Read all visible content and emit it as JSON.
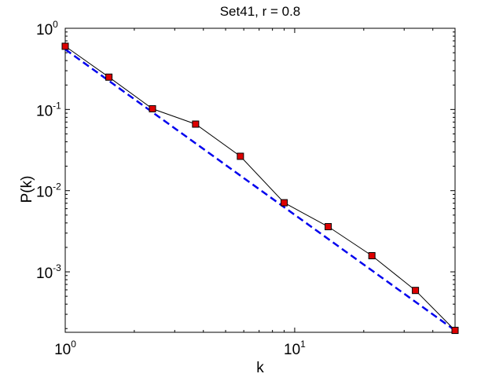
{
  "chart_data": {
    "type": "line",
    "title": "Set41, r = 0.8",
    "xlabel": "k",
    "ylabel": "P(k)",
    "xscale": "log",
    "yscale": "log",
    "xlim": [
      1,
      50
    ],
    "ylim": [
      0.00018,
      1
    ],
    "x_ticks": [
      {
        "value": 1,
        "base": "10",
        "exp": "0"
      },
      {
        "value": 10,
        "base": "10",
        "exp": "1"
      }
    ],
    "y_ticks": [
      {
        "value": 1,
        "base": "10",
        "exp": "0"
      },
      {
        "value": 0.1,
        "base": "10",
        "exp": "-1"
      },
      {
        "value": 0.01,
        "base": "10",
        "exp": "-2"
      },
      {
        "value": 0.001,
        "base": "10",
        "exp": "-3"
      }
    ],
    "grid": false,
    "series": [
      {
        "style": "solid-line-square-markers",
        "line_color": "#000000",
        "marker_color": "#dd0000",
        "x": [
          1,
          1.55,
          2.4,
          3.7,
          5.8,
          9.0,
          14.0,
          21.7,
          33.6,
          50
        ],
        "y": [
          0.6,
          0.25,
          0.102,
          0.066,
          0.0265,
          0.0071,
          0.0036,
          0.00158,
          0.00059,
          0.00019
        ]
      },
      {
        "style": "dashed-line",
        "line_color": "#0000ee",
        "x": [
          1,
          50
        ],
        "y": [
          0.55,
          0.00019
        ]
      }
    ]
  }
}
